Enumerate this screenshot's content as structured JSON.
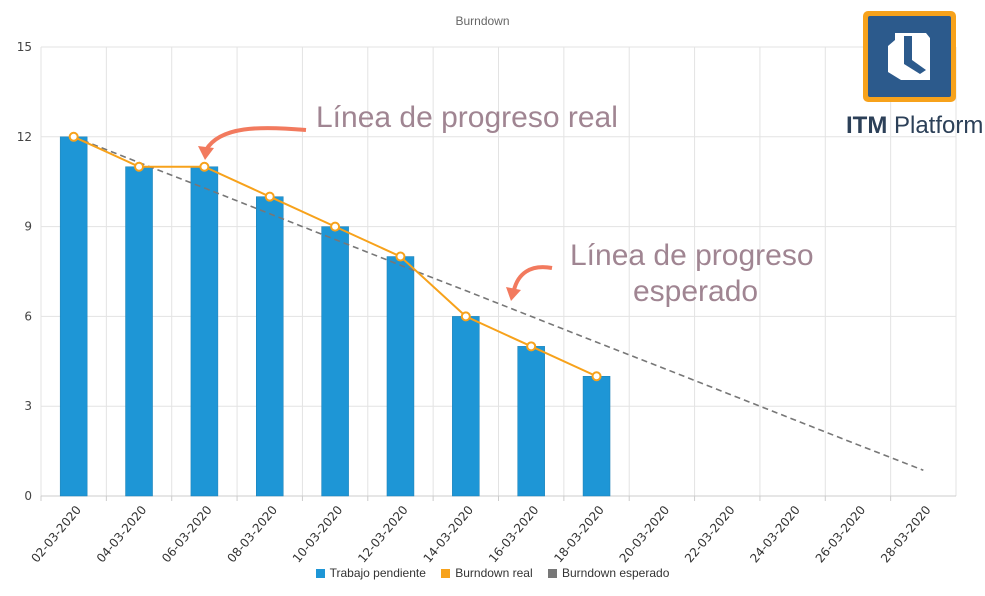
{
  "chart_data": {
    "type": "bar",
    "title": "Burndown",
    "categories": [
      "02-03-2020",
      "04-03-2020",
      "06-03-2020",
      "08-03-2020",
      "10-03-2020",
      "12-03-2020",
      "14-03-2020",
      "16-03-2020",
      "18-03-2020",
      "20-03-2020",
      "22-03-2020",
      "24-03-2020",
      "26-03-2020",
      "28-03-2020"
    ],
    "series": [
      {
        "name": "Trabajo pendiente",
        "type": "bar",
        "color": "#1e96d6",
        "values": [
          12,
          11,
          11,
          10,
          9,
          8,
          6,
          5,
          4,
          null,
          null,
          null,
          null,
          null
        ]
      },
      {
        "name": "Burndown real",
        "type": "line",
        "color": "#f7a21b",
        "values": [
          12,
          11,
          11,
          10,
          9,
          8,
          6,
          5,
          4,
          null,
          null,
          null,
          null,
          null
        ]
      },
      {
        "name": "Burndown esperado",
        "type": "line",
        "dashed": true,
        "color": "#777777",
        "values": [
          12,
          11.14,
          10.29,
          9.43,
          8.57,
          7.71,
          6.86,
          6,
          5.14,
          4.29,
          3.43,
          2.57,
          1.71,
          0.86
        ]
      }
    ],
    "yticks": [
      0,
      3,
      6,
      9,
      12,
      15
    ],
    "ylim": [
      0,
      15
    ],
    "grid": true,
    "legend": "bottom",
    "annotations": {
      "real": "Línea de progreso real",
      "expected_1": "Línea de progreso",
      "expected_2": "esperado"
    }
  },
  "logo": {
    "brand_bold": "ITM",
    "brand_light": " Platform"
  }
}
